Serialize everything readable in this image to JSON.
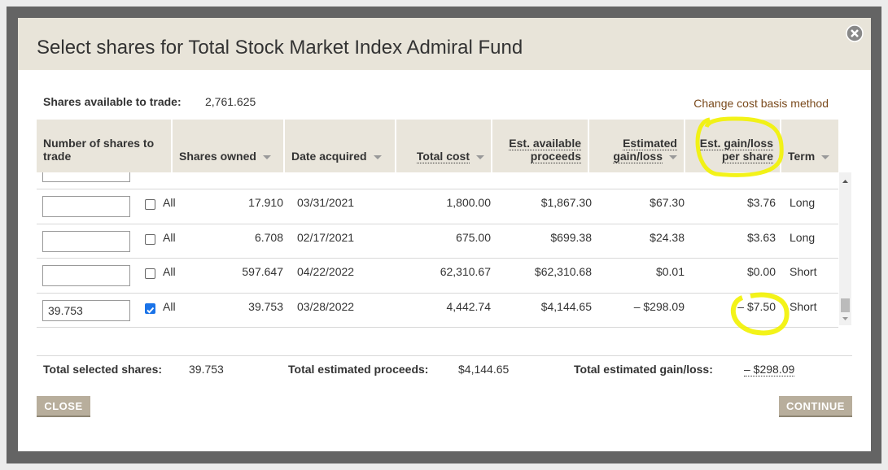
{
  "title": "Select shares for Total Stock Market Index Admiral Fund",
  "shares_available": {
    "label": "Shares available to trade:",
    "value": "2,761.625"
  },
  "change_link": "Change cost basis method",
  "table": {
    "headers": [
      "Number of shares to trade",
      "Shares owned",
      "Date acquired",
      "Total cost",
      "Est. available proceeds",
      "Estimated gain/loss",
      "Est. gain/loss per share",
      "Term"
    ],
    "rows": [
      {
        "checked": false,
        "all_label": "All",
        "cells": [
          "17.910",
          "03/31/2021",
          "1,800.00",
          "$1,867.30",
          "$67.30",
          "$3.76",
          "Long"
        ]
      },
      {
        "checked": false,
        "all_label": "All",
        "cells": [
          "6.708",
          "02/17/2021",
          "675.00",
          "$699.38",
          "$24.38",
          "$3.63",
          "Long"
        ]
      },
      {
        "checked": false,
        "all_label": "All",
        "cells": [
          "597.647",
          "04/22/2022",
          "62,310.67",
          "$62,310.68",
          "$0.01",
          "$0.00",
          "Short"
        ]
      },
      {
        "input": "39.753",
        "checked": true,
        "all_label": "All",
        "cells": [
          "39.753",
          "03/28/2022",
          "4,442.74",
          "$4,144.65",
          "– $298.09",
          "– $7.50",
          "Short"
        ]
      }
    ]
  },
  "totals": [
    {
      "label": "Total selected shares:",
      "value": "39.753"
    },
    {
      "label": "Total estimated proceeds:",
      "value": "$4,144.65"
    },
    {
      "label": "Total estimated gain/loss:",
      "value": "– $298.09"
    }
  ],
  "buttons": [
    "CLOSE",
    "CONTINUE"
  ]
}
